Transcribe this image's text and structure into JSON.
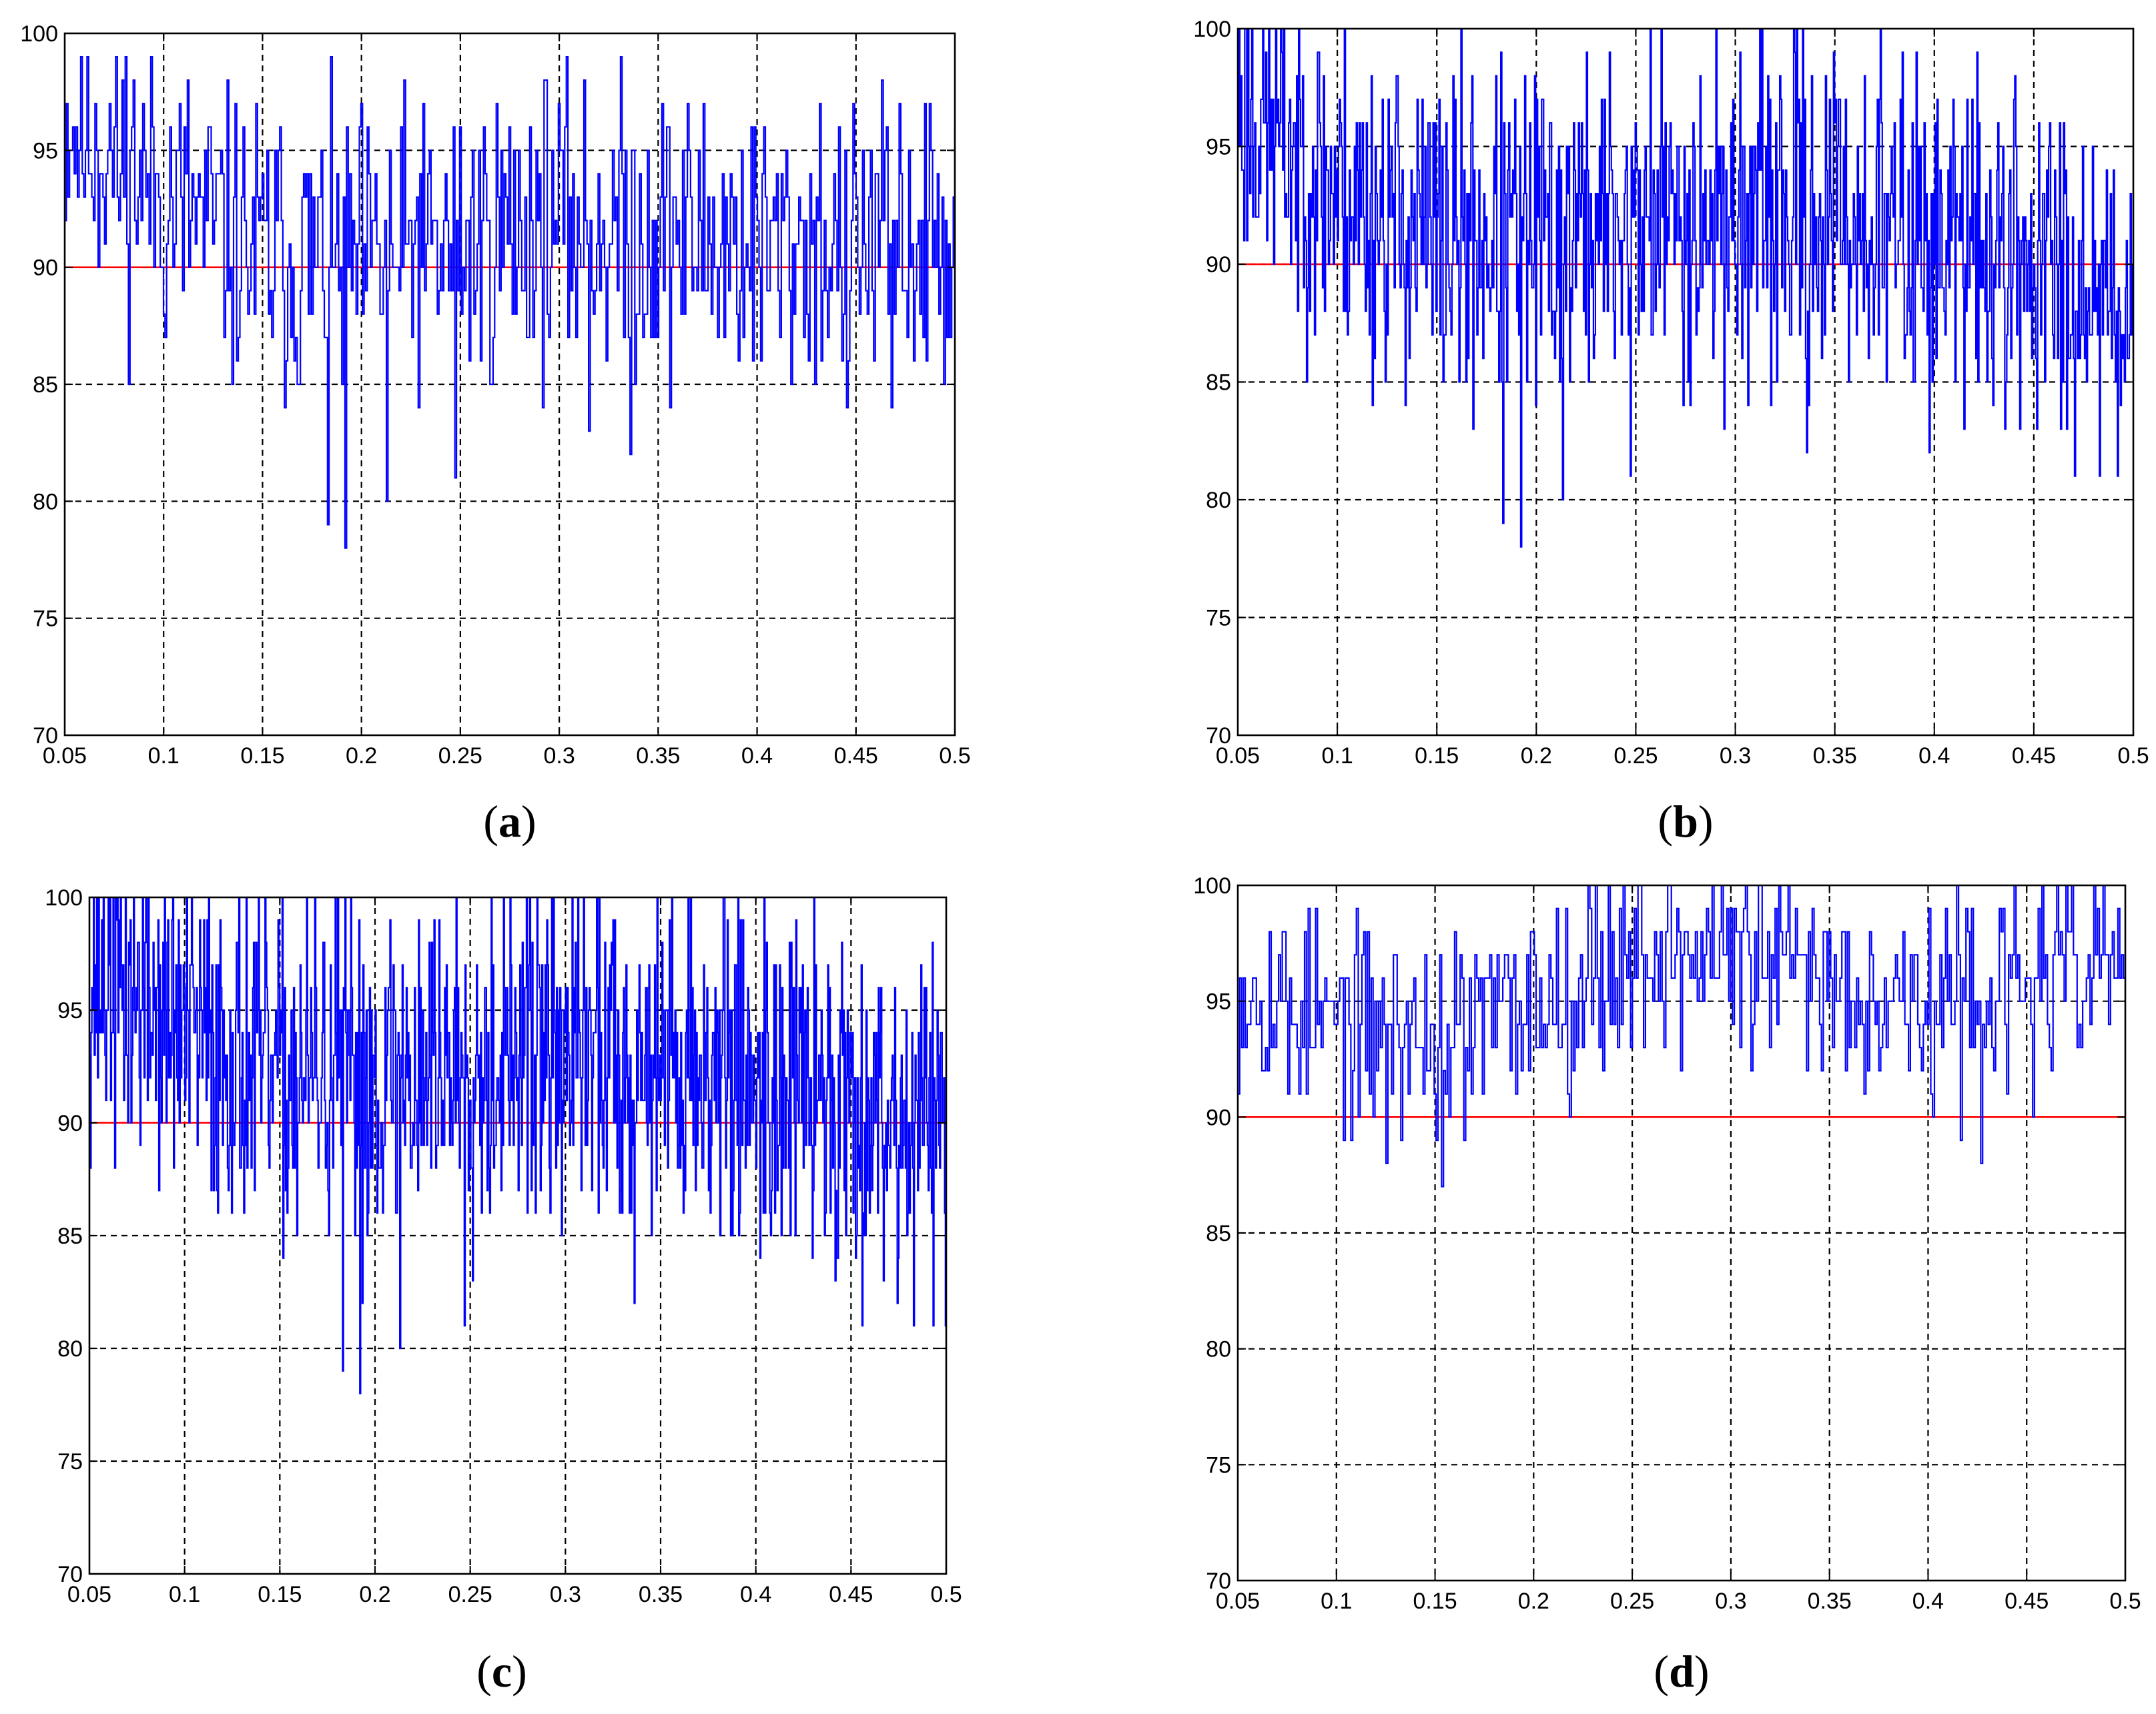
{
  "chart_data": [
    {
      "type": "line",
      "panel": "a",
      "caption": {
        "open": "(",
        "letter": "a",
        "close": ")"
      },
      "xlim": [
        0.05,
        0.5
      ],
      "ylim": [
        70,
        100
      ],
      "xticks": [
        "0.05",
        "0.1",
        "0.15",
        "0.2",
        "0.25",
        "0.3",
        "0.35",
        "0.4",
        "0.45",
        "0.5"
      ],
      "yticks": [
        "100",
        "95",
        "90",
        "85",
        "80",
        "75",
        "70"
      ],
      "grid": true,
      "threshold": {
        "y": 90,
        "color": "#ff0000"
      },
      "series": [
        {
          "name": "signal",
          "color": "#0000ff",
          "x_start": 0.05,
          "x_end": 0.5,
          "profile": [
            [
              0.05,
              96.5
            ],
            [
              0.1,
              93
            ],
            [
              0.15,
              90.5
            ],
            [
              0.2,
              90
            ],
            [
              0.25,
              91
            ],
            [
              0.3,
              92
            ],
            [
              0.35,
              91.5
            ],
            [
              0.4,
              91
            ],
            [
              0.45,
              91
            ],
            [
              0.5,
              91
            ]
          ],
          "noise_amplitude": 3.2,
          "n_points": 560,
          "seed": 11,
          "y_max": 99,
          "dips": [
            [
              0.183,
              79
            ],
            [
              0.192,
              78
            ],
            [
              0.213,
              80
            ],
            [
              0.247,
              81
            ],
            [
              0.315,
              83
            ],
            [
              0.336,
              82
            ],
            [
              0.445,
              84
            ],
            [
              0.468,
              84
            ]
          ]
        }
      ]
    },
    {
      "type": "line",
      "panel": "b",
      "caption": {
        "open": "(",
        "letter": "b",
        "close": ")"
      },
      "xlim": [
        0.05,
        0.5
      ],
      "ylim": [
        70,
        100
      ],
      "xticks": [
        "0.05",
        "0.1",
        "0.15",
        "0.2",
        "0.25",
        "0.3",
        "0.35",
        "0.4",
        "0.45",
        "0.5"
      ],
      "yticks": [
        "100",
        "95",
        "90",
        "85",
        "80",
        "75",
        "70"
      ],
      "grid": true,
      "threshold": {
        "y": 90,
        "color": "#ff0000"
      },
      "series": [
        {
          "name": "signal",
          "color": "#0000ff",
          "x_start": 0.05,
          "x_end": 0.5,
          "profile": [
            [
              0.05,
              97
            ],
            [
              0.1,
              93
            ],
            [
              0.15,
              91
            ],
            [
              0.2,
              91
            ],
            [
              0.25,
              92
            ],
            [
              0.3,
              92
            ],
            [
              0.35,
              92
            ],
            [
              0.4,
              91
            ],
            [
              0.45,
              90
            ],
            [
              0.5,
              89
            ]
          ],
          "noise_amplitude": 3.6,
          "n_points": 900,
          "seed": 23,
          "y_max": 100,
          "dips": [
            [
              0.183,
              79
            ],
            [
              0.192,
              78
            ],
            [
              0.213,
              80
            ],
            [
              0.247,
              81
            ],
            [
              0.336,
              82
            ],
            [
              0.483,
              81
            ],
            [
              0.492,
              81
            ]
          ]
        }
      ]
    },
    {
      "type": "line",
      "panel": "c",
      "caption": {
        "open": "(",
        "letter": "c",
        "close": ")"
      },
      "xlim": [
        0.05,
        0.5
      ],
      "ylim": [
        70,
        100
      ],
      "xticks": [
        "0.05",
        "0.1",
        "0.15",
        "0.2",
        "0.25",
        "0.3",
        "0.35",
        "0.4",
        "0.45",
        "0.5"
      ],
      "yticks": [
        "100",
        "95",
        "90",
        "85",
        "80",
        "75",
        "70"
      ],
      "grid": true,
      "threshold": {
        "y": 90,
        "color": "#ff0000"
      },
      "series": [
        {
          "name": "signal",
          "color": "#0000ff",
          "x_start": 0.05,
          "x_end": 0.5,
          "profile": [
            [
              0.05,
              97
            ],
            [
              0.1,
              94
            ],
            [
              0.15,
              92
            ],
            [
              0.2,
              92
            ],
            [
              0.25,
              93
            ],
            [
              0.3,
              93
            ],
            [
              0.35,
              93
            ],
            [
              0.4,
              92
            ],
            [
              0.45,
              91
            ],
            [
              0.5,
              90
            ]
          ],
          "noise_amplitude": 3.8,
          "n_points": 1050,
          "seed": 37,
          "y_max": 100,
          "dips": [
            [
              0.183,
              79
            ],
            [
              0.192,
              78
            ],
            [
              0.213,
              80
            ],
            [
              0.247,
              81
            ],
            [
              0.336,
              82
            ],
            [
              0.483,
              81
            ],
            [
              0.493,
              81
            ]
          ]
        }
      ]
    },
    {
      "type": "line",
      "panel": "d",
      "caption": {
        "open": "(",
        "letter": "d",
        "close": ")"
      },
      "xlim": [
        0.05,
        0.5
      ],
      "ylim": [
        70,
        100
      ],
      "xticks": [
        "0.05",
        "0.1",
        "0.15",
        "0.2",
        "0.25",
        "0.3",
        "0.35",
        "0.4",
        "0.45",
        "0.5"
      ],
      "yticks": [
        "100",
        "95",
        "90",
        "85",
        "80",
        "75",
        "70"
      ],
      "grid": true,
      "threshold": {
        "y": 90,
        "color": "#ff0000"
      },
      "series": [
        {
          "name": "signal",
          "color": "#0000ff",
          "x_start": 0.05,
          "x_end": 0.5,
          "profile": [
            [
              0.05,
              96
            ],
            [
              0.1,
              94
            ],
            [
              0.15,
              93.5
            ],
            [
              0.2,
              95
            ],
            [
              0.25,
              97
            ],
            [
              0.3,
              97
            ],
            [
              0.35,
              96
            ],
            [
              0.4,
              95
            ],
            [
              0.45,
              95.5
            ],
            [
              0.5,
              97
            ]
          ],
          "noise_amplitude": 2.2,
          "n_points": 480,
          "seed": 53,
          "y_max": 100,
          "dips": [
            [
              0.075,
              91
            ],
            [
              0.125,
              88
            ],
            [
              0.153,
              87
            ],
            [
              0.165,
              89
            ],
            [
              0.402,
              90
            ],
            [
              0.427,
              88
            ]
          ]
        }
      ]
    }
  ]
}
